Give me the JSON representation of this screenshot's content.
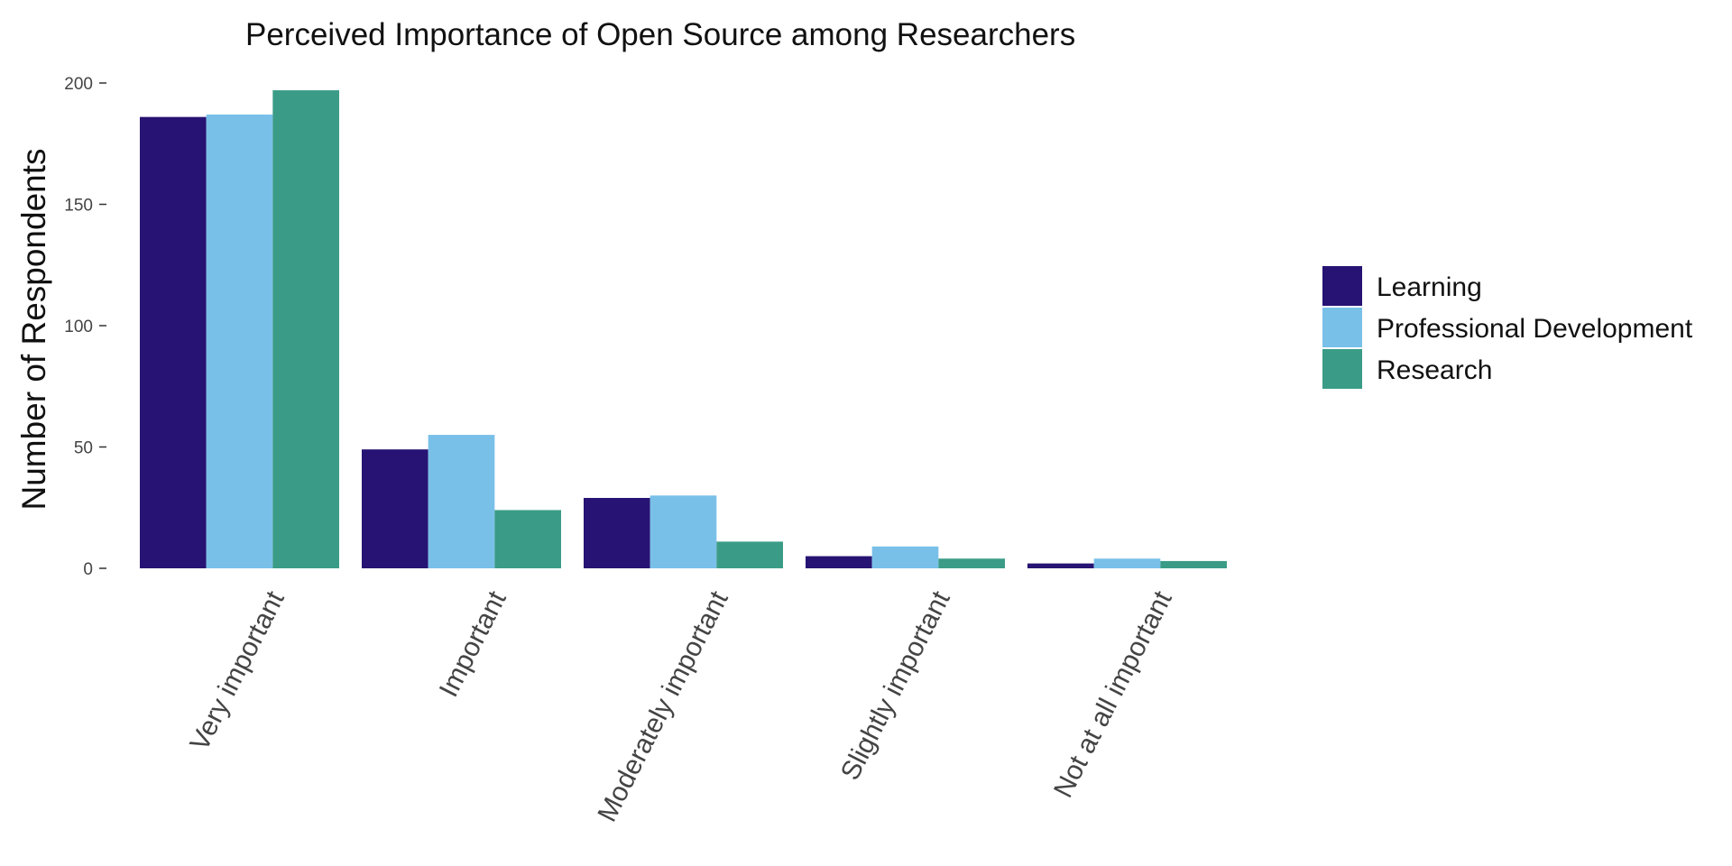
{
  "chart_data": {
    "type": "bar",
    "title": "Perceived Importance of Open Source among Researchers",
    "xlabel": "",
    "ylabel": "Number of Respondents",
    "categories": [
      "Very important",
      "Important",
      "Moderately important",
      "Slightly important",
      "Not at all important"
    ],
    "series": [
      {
        "name": "Learning",
        "color": "#271373",
        "values": [
          186,
          49,
          29,
          5,
          2
        ]
      },
      {
        "name": "Professional Development",
        "color": "#79C0E9",
        "values": [
          187,
          55,
          30,
          9,
          4
        ]
      },
      {
        "name": "Research",
        "color": "#3A9C87",
        "values": [
          197,
          24,
          11,
          4,
          3
        ]
      }
    ],
    "ylim": [
      0,
      200
    ],
    "yticks": [
      0,
      50,
      100,
      150,
      200
    ],
    "grid": false,
    "legend_position": "right"
  }
}
